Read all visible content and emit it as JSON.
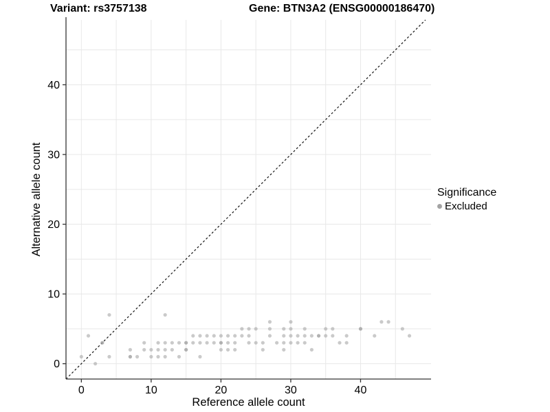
{
  "title": {
    "variant": "Variant: rs3757138",
    "gene": "Gene: BTN3A2 (ENSG00000186470)"
  },
  "axes": {
    "x": {
      "label": "Reference allele count",
      "ticks": [
        0,
        10,
        20,
        30,
        40
      ],
      "range": [
        -2.2,
        50.1
      ],
      "grid_step": 5,
      "grid_max": 45
    },
    "y": {
      "label": "Alternative allele count",
      "ticks": [
        0,
        10,
        20,
        30,
        40
      ],
      "range": [
        -2.2,
        49.3
      ],
      "grid_step": 5,
      "grid_max": 45
    }
  },
  "legend": {
    "title": "Significance",
    "items": [
      {
        "label": "Excluded",
        "color": "#a3a3a3"
      }
    ]
  },
  "colors": {
    "point": "#9e9e9e",
    "point_opacity": 0.55,
    "grid": "#e8e8e8",
    "axis_line": "#333333",
    "tick": "#333333",
    "identity_line": "#111111",
    "text": "#000000"
  },
  "chart_data": {
    "type": "scatter",
    "title": "Variant: rs3757138  Gene: BTN3A2 (ENSG00000186470)",
    "xlabel": "Reference allele count",
    "ylabel": "Alternative allele count",
    "xlim": [
      -2.2,
      50.1
    ],
    "ylim": [
      -2.2,
      49.3
    ],
    "grid": "on",
    "legend_position": "right",
    "identity_line": {
      "style": "dashed",
      "slope": 1,
      "intercept": 0
    },
    "series": [
      {
        "name": "Excluded",
        "color": "#9e9e9e",
        "points": [
          [
            2,
            0
          ],
          [
            0,
            1
          ],
          [
            4,
            1
          ],
          [
            7,
            1
          ],
          [
            8,
            1
          ],
          [
            10,
            1
          ],
          [
            11,
            1
          ],
          [
            12,
            1
          ],
          [
            14,
            1
          ],
          [
            17,
            1
          ],
          [
            7,
            2
          ],
          [
            9,
            2
          ],
          [
            10,
            2
          ],
          [
            11,
            2
          ],
          [
            12,
            2
          ],
          [
            13,
            2
          ],
          [
            15,
            2
          ],
          [
            20,
            2
          ],
          [
            21,
            2
          ],
          [
            22,
            2
          ],
          [
            26,
            2
          ],
          [
            29,
            2
          ],
          [
            33,
            2
          ],
          [
            3,
            3
          ],
          [
            9,
            3
          ],
          [
            11,
            3
          ],
          [
            12,
            3
          ],
          [
            13,
            3
          ],
          [
            14,
            3
          ],
          [
            15,
            3
          ],
          [
            16,
            3
          ],
          [
            17,
            3
          ],
          [
            18,
            3
          ],
          [
            19,
            3
          ],
          [
            20,
            3
          ],
          [
            21,
            3
          ],
          [
            22,
            3
          ],
          [
            24,
            3
          ],
          [
            25,
            3
          ],
          [
            26,
            3
          ],
          [
            28,
            3
          ],
          [
            29,
            3
          ],
          [
            30,
            3
          ],
          [
            31,
            3
          ],
          [
            32,
            3
          ],
          [
            37,
            3
          ],
          [
            38,
            3
          ],
          [
            1,
            4
          ],
          [
            16,
            4
          ],
          [
            17,
            4
          ],
          [
            18,
            4
          ],
          [
            19,
            4
          ],
          [
            20,
            4
          ],
          [
            21,
            4
          ],
          [
            22,
            4
          ],
          [
            23,
            4
          ],
          [
            24,
            4
          ],
          [
            27,
            4
          ],
          [
            29,
            4
          ],
          [
            30,
            4
          ],
          [
            31,
            4
          ],
          [
            32,
            4
          ],
          [
            33,
            4
          ],
          [
            34,
            4
          ],
          [
            35,
            4
          ],
          [
            36,
            4
          ],
          [
            38,
            4
          ],
          [
            42,
            4
          ],
          [
            47,
            4
          ],
          [
            23,
            5
          ],
          [
            24,
            5
          ],
          [
            25,
            5
          ],
          [
            27,
            5
          ],
          [
            29,
            5
          ],
          [
            30,
            5
          ],
          [
            32,
            5
          ],
          [
            35,
            5
          ],
          [
            36,
            5
          ],
          [
            40,
            5
          ],
          [
            46,
            5
          ],
          [
            27,
            6
          ],
          [
            30,
            6
          ],
          [
            43,
            6
          ],
          [
            44,
            6
          ],
          [
            4,
            7
          ],
          [
            12,
            7
          ]
        ],
        "overplotted_points": [
          [
            3,
            3
          ],
          [
            7,
            1
          ],
          [
            15,
            2
          ],
          [
            15,
            3
          ],
          [
            20,
            3
          ],
          [
            34,
            4
          ],
          [
            40,
            5
          ]
        ]
      }
    ]
  }
}
